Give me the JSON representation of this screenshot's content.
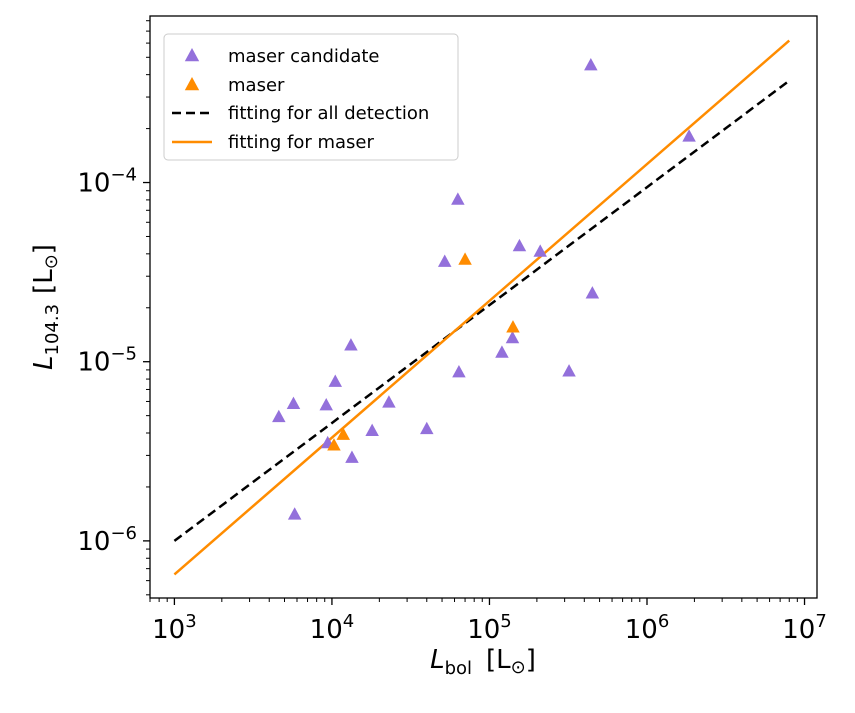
{
  "chart_data": {
    "type": "scatter",
    "x_scale": "log",
    "y_scale": "log",
    "xlim": [
      700,
      12000000
    ],
    "ylim": [
      4.8e-07,
      0.00085
    ],
    "xticks": [
      {
        "value": 1000,
        "base": "10",
        "exp": "3"
      },
      {
        "value": 10000,
        "base": "10",
        "exp": "4"
      },
      {
        "value": 100000,
        "base": "10",
        "exp": "5"
      },
      {
        "value": 1000000,
        "base": "10",
        "exp": "6"
      },
      {
        "value": 10000000,
        "base": "10",
        "exp": "7"
      }
    ],
    "yticks": [
      {
        "value": 1e-06,
        "base": "10",
        "exp": "−6"
      },
      {
        "value": 1e-05,
        "base": "10",
        "exp": "−5"
      },
      {
        "value": 0.0001,
        "base": "10",
        "exp": "−4"
      }
    ],
    "xlabel": {
      "main": "L",
      "sub": "bol",
      "unit": "[L",
      "unit_sub": "⊙",
      "unit_close": "]"
    },
    "ylabel": {
      "main": "L",
      "sub": "104.3",
      "unit": "[L",
      "unit_sub": "⊙",
      "unit_close": "]"
    },
    "grid": false,
    "legend_position": "top-left",
    "series": [
      {
        "name": "maser candidate",
        "kind": "scatter",
        "marker": "triangle",
        "color": "#9370DB",
        "points": [
          [
            4600,
            4.9e-06
          ],
          [
            5700,
            5.8e-06
          ],
          [
            9200,
            5.7e-06
          ],
          [
            10500,
            7.7e-06
          ],
          [
            13200,
            1.23e-05
          ],
          [
            23000,
            5.9e-06
          ],
          [
            18000,
            4.1e-06
          ],
          [
            13400,
            2.9e-06
          ],
          [
            9400,
            3.5e-06
          ],
          [
            5800,
            1.4e-06
          ],
          [
            40000,
            4.2e-06
          ],
          [
            52000,
            3.6e-05
          ],
          [
            63000,
            8e-05
          ],
          [
            64000,
            8.7e-06
          ],
          [
            120000,
            1.12e-05
          ],
          [
            140000,
            1.35e-05
          ],
          [
            155000,
            4.4e-05
          ],
          [
            210000,
            4.1e-05
          ],
          [
            320000,
            8.8e-06
          ],
          [
            440000,
            0.00045
          ],
          [
            450000,
            2.4e-05
          ],
          [
            1850000,
            0.00018
          ]
        ]
      },
      {
        "name": "maser",
        "kind": "scatter",
        "marker": "triangle",
        "color": "#FF8C00",
        "points": [
          [
            10300,
            3.4e-06
          ],
          [
            11800,
            3.9e-06
          ],
          [
            70000,
            3.7e-05
          ],
          [
            141000,
            1.55e-05
          ]
        ]
      },
      {
        "name": "fitting for all detection",
        "kind": "line",
        "style": "dashed",
        "color": "#000000",
        "points": [
          [
            1000,
            1e-06
          ],
          [
            8000000,
            0.00037
          ]
        ]
      },
      {
        "name": "fitting for maser",
        "kind": "line",
        "style": "solid",
        "color": "#FF8C00",
        "points": [
          [
            1000,
            6.5e-07
          ],
          [
            8000000,
            0.00062
          ]
        ]
      }
    ]
  }
}
